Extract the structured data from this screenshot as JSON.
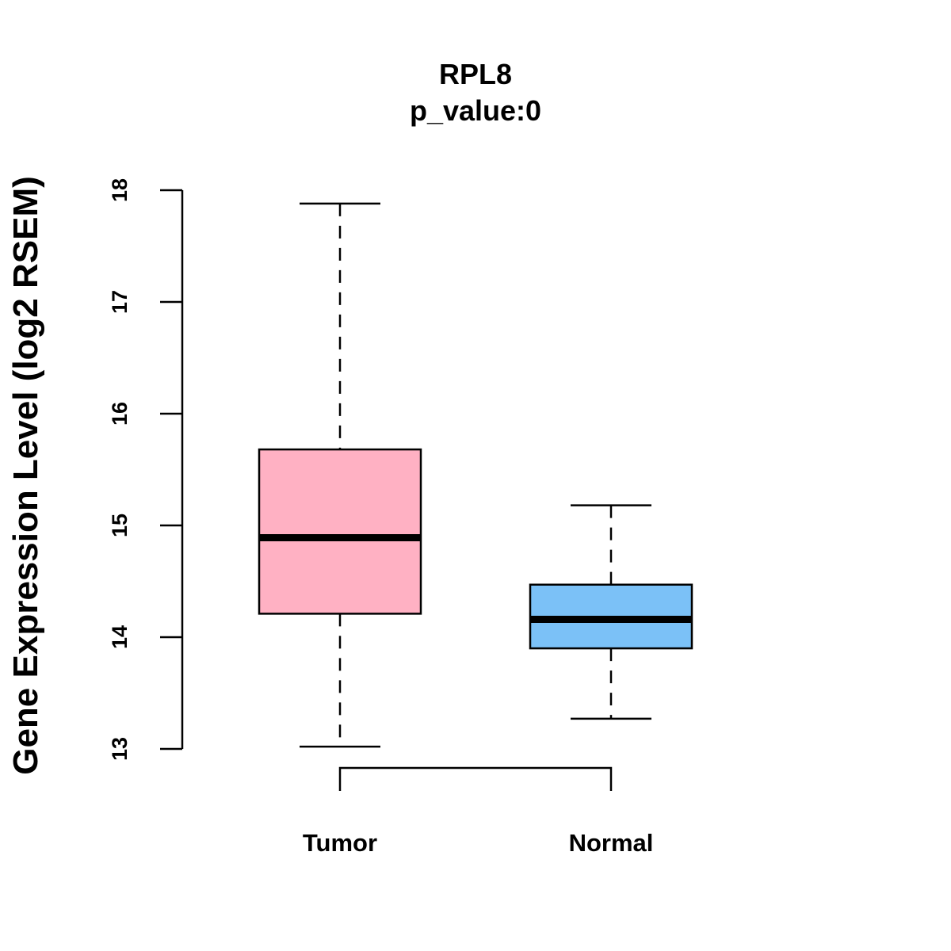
{
  "chart_data": {
    "type": "boxplot",
    "title": "RPL8",
    "subtitle": "p_value:0",
    "xlabel": "",
    "ylabel": "Gene Expression Level (log2 RSEM)",
    "ylim": [
      13,
      18
    ],
    "yticks": [
      13,
      14,
      15,
      16,
      17,
      18
    ],
    "ytick_labels": [
      "13",
      "14",
      "15",
      "16",
      "17",
      "18"
    ],
    "categories": [
      "Tumor",
      "Normal"
    ],
    "boxes": [
      {
        "name": "Tumor",
        "whisker_low": 13.02,
        "q1": 14.21,
        "median": 14.89,
        "q3": 15.68,
        "whisker_high": 17.88,
        "color": "#FFB1C3"
      },
      {
        "name": "Normal",
        "whisker_low": 13.27,
        "q1": 13.9,
        "median": 14.16,
        "q3": 14.47,
        "whisker_high": 15.18,
        "color": "#7BC1F7"
      }
    ],
    "comparison_bracket": [
      "Tumor",
      "Normal"
    ],
    "grid": false
  }
}
